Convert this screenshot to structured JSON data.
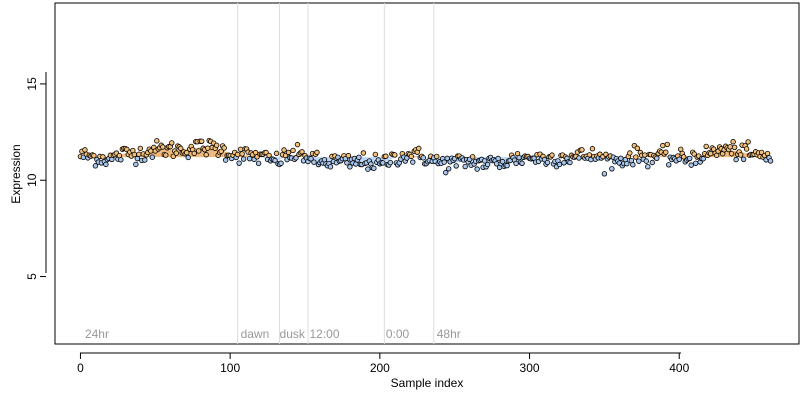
{
  "chart_data": {
    "type": "scatter",
    "title": "",
    "xlabel": "Sample index",
    "ylabel": "Expression",
    "xlim": [
      -17,
      480
    ],
    "ylim": [
      1.5,
      19.2
    ],
    "x_ticks": [
      0,
      100,
      200,
      300,
      400
    ],
    "x_tick_labels": [
      "0",
      "100",
      "200",
      "300",
      "400"
    ],
    "y_ticks": [
      5,
      10,
      15
    ],
    "y_tick_labels": [
      "5",
      "10",
      "15"
    ],
    "grid": false,
    "legend": "none",
    "n_points": 462,
    "mean_level": 11.2,
    "colors": {
      "high_point": "#f5c07a",
      "low_point": "#a8c8f0",
      "smooth_band": "#e8a050",
      "divider": "#dddddd",
      "period_label": "#999999"
    },
    "vlines": [
      105,
      133,
      152,
      203,
      236
    ],
    "period_labels": [
      {
        "x": 3,
        "text": "24hr"
      },
      {
        "x": 107,
        "text": "dawn"
      },
      {
        "x": 133,
        "text": "dusk"
      },
      {
        "x": 153,
        "text": "12:00"
      },
      {
        "x": 204,
        "text": "0:00"
      },
      {
        "x": 238,
        "text": "48hr"
      }
    ],
    "trend_knots": {
      "x": [
        0,
        10,
        20,
        30,
        40,
        50,
        60,
        70,
        80,
        90,
        100,
        110,
        120,
        130,
        140,
        150,
        160,
        170,
        180,
        190,
        200,
        210,
        220,
        230,
        240,
        250,
        260,
        270,
        280,
        290,
        300,
        310,
        320,
        330,
        340,
        350,
        360,
        370,
        380,
        390,
        400,
        410,
        420,
        430,
        440,
        450,
        461
      ],
      "y": [
        11.3,
        11.2,
        11.1,
        11.4,
        11.4,
        11.6,
        11.6,
        11.6,
        11.7,
        11.7,
        11.4,
        11.3,
        11.2,
        11.0,
        11.3,
        11.3,
        10.9,
        11.0,
        10.9,
        11.0,
        10.8,
        11.2,
        11.3,
        11.2,
        10.9,
        10.9,
        11.0,
        10.9,
        10.9,
        11.1,
        11.2,
        11.1,
        11.2,
        11.2,
        11.3,
        11.1,
        11.0,
        11.3,
        11.2,
        11.3,
        11.1,
        11.2,
        11.4,
        11.6,
        11.5,
        11.3,
        11.2
      ]
    }
  }
}
